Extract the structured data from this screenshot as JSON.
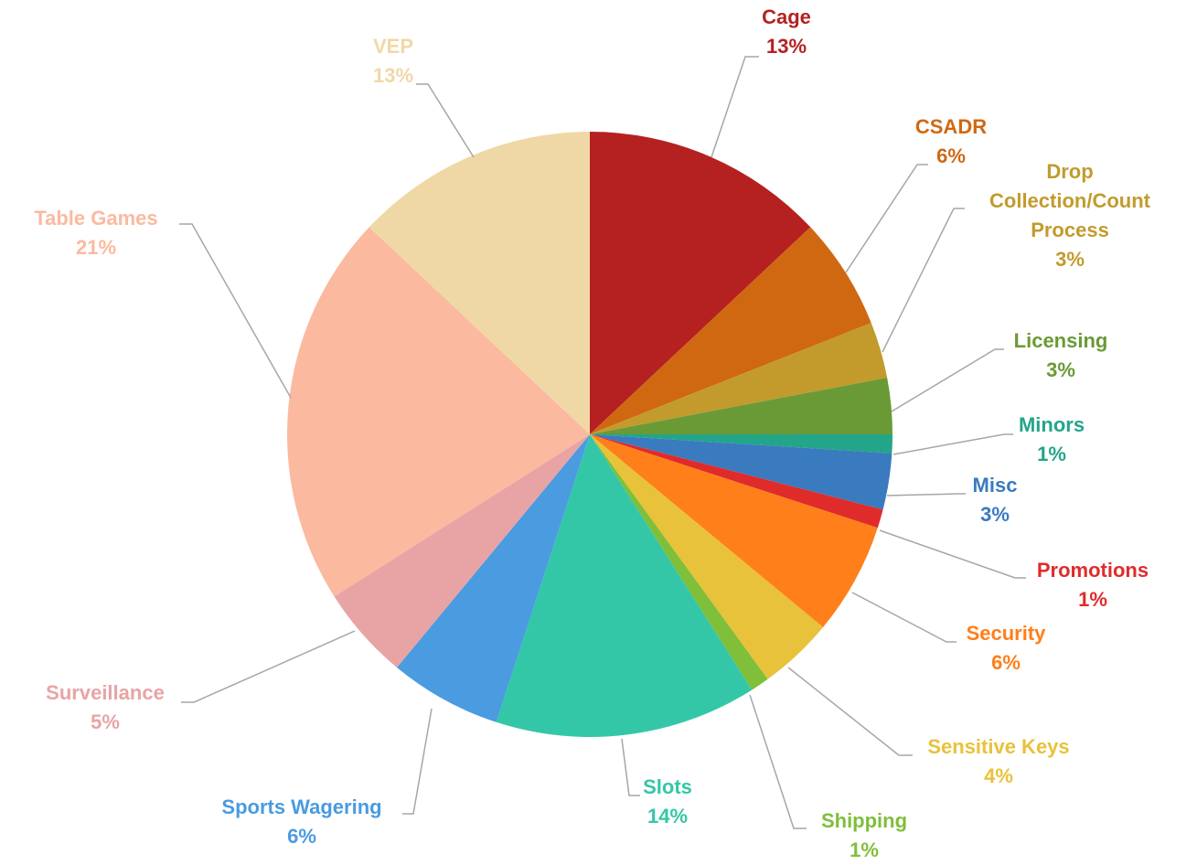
{
  "chart_data": {
    "type": "pie",
    "categories": [
      "Cage",
      "CSADR",
      "Drop Collection/Count Process",
      "Licensing",
      "Minors",
      "Misc",
      "Promotions",
      "Security",
      "Sensitive Keys",
      "Shipping",
      "Slots",
      "Sports Wagering",
      "Surveillance",
      "Table Games",
      "VEP"
    ],
    "values": [
      13,
      6,
      3,
      3,
      1,
      3,
      1,
      6,
      4,
      1,
      14,
      6,
      5,
      21,
      13
    ],
    "value_labels": [
      "13%",
      "6%",
      "3%",
      "3%",
      "1%",
      "3%",
      "1%",
      "6%",
      "4%",
      "1%",
      "14%",
      "6%",
      "5%",
      "21%",
      "13%"
    ],
    "colors": [
      "#b52121",
      "#d06812",
      "#c29b2c",
      "#6a9a36",
      "#23a58a",
      "#3a7bbf",
      "#e02b2b",
      "#ff7f1a",
      "#e8c23a",
      "#7fbf3a",
      "#33c7a8",
      "#4a9be0",
      "#e8a4a4",
      "#fbb9a0",
      "#f0d8a6"
    ]
  }
}
